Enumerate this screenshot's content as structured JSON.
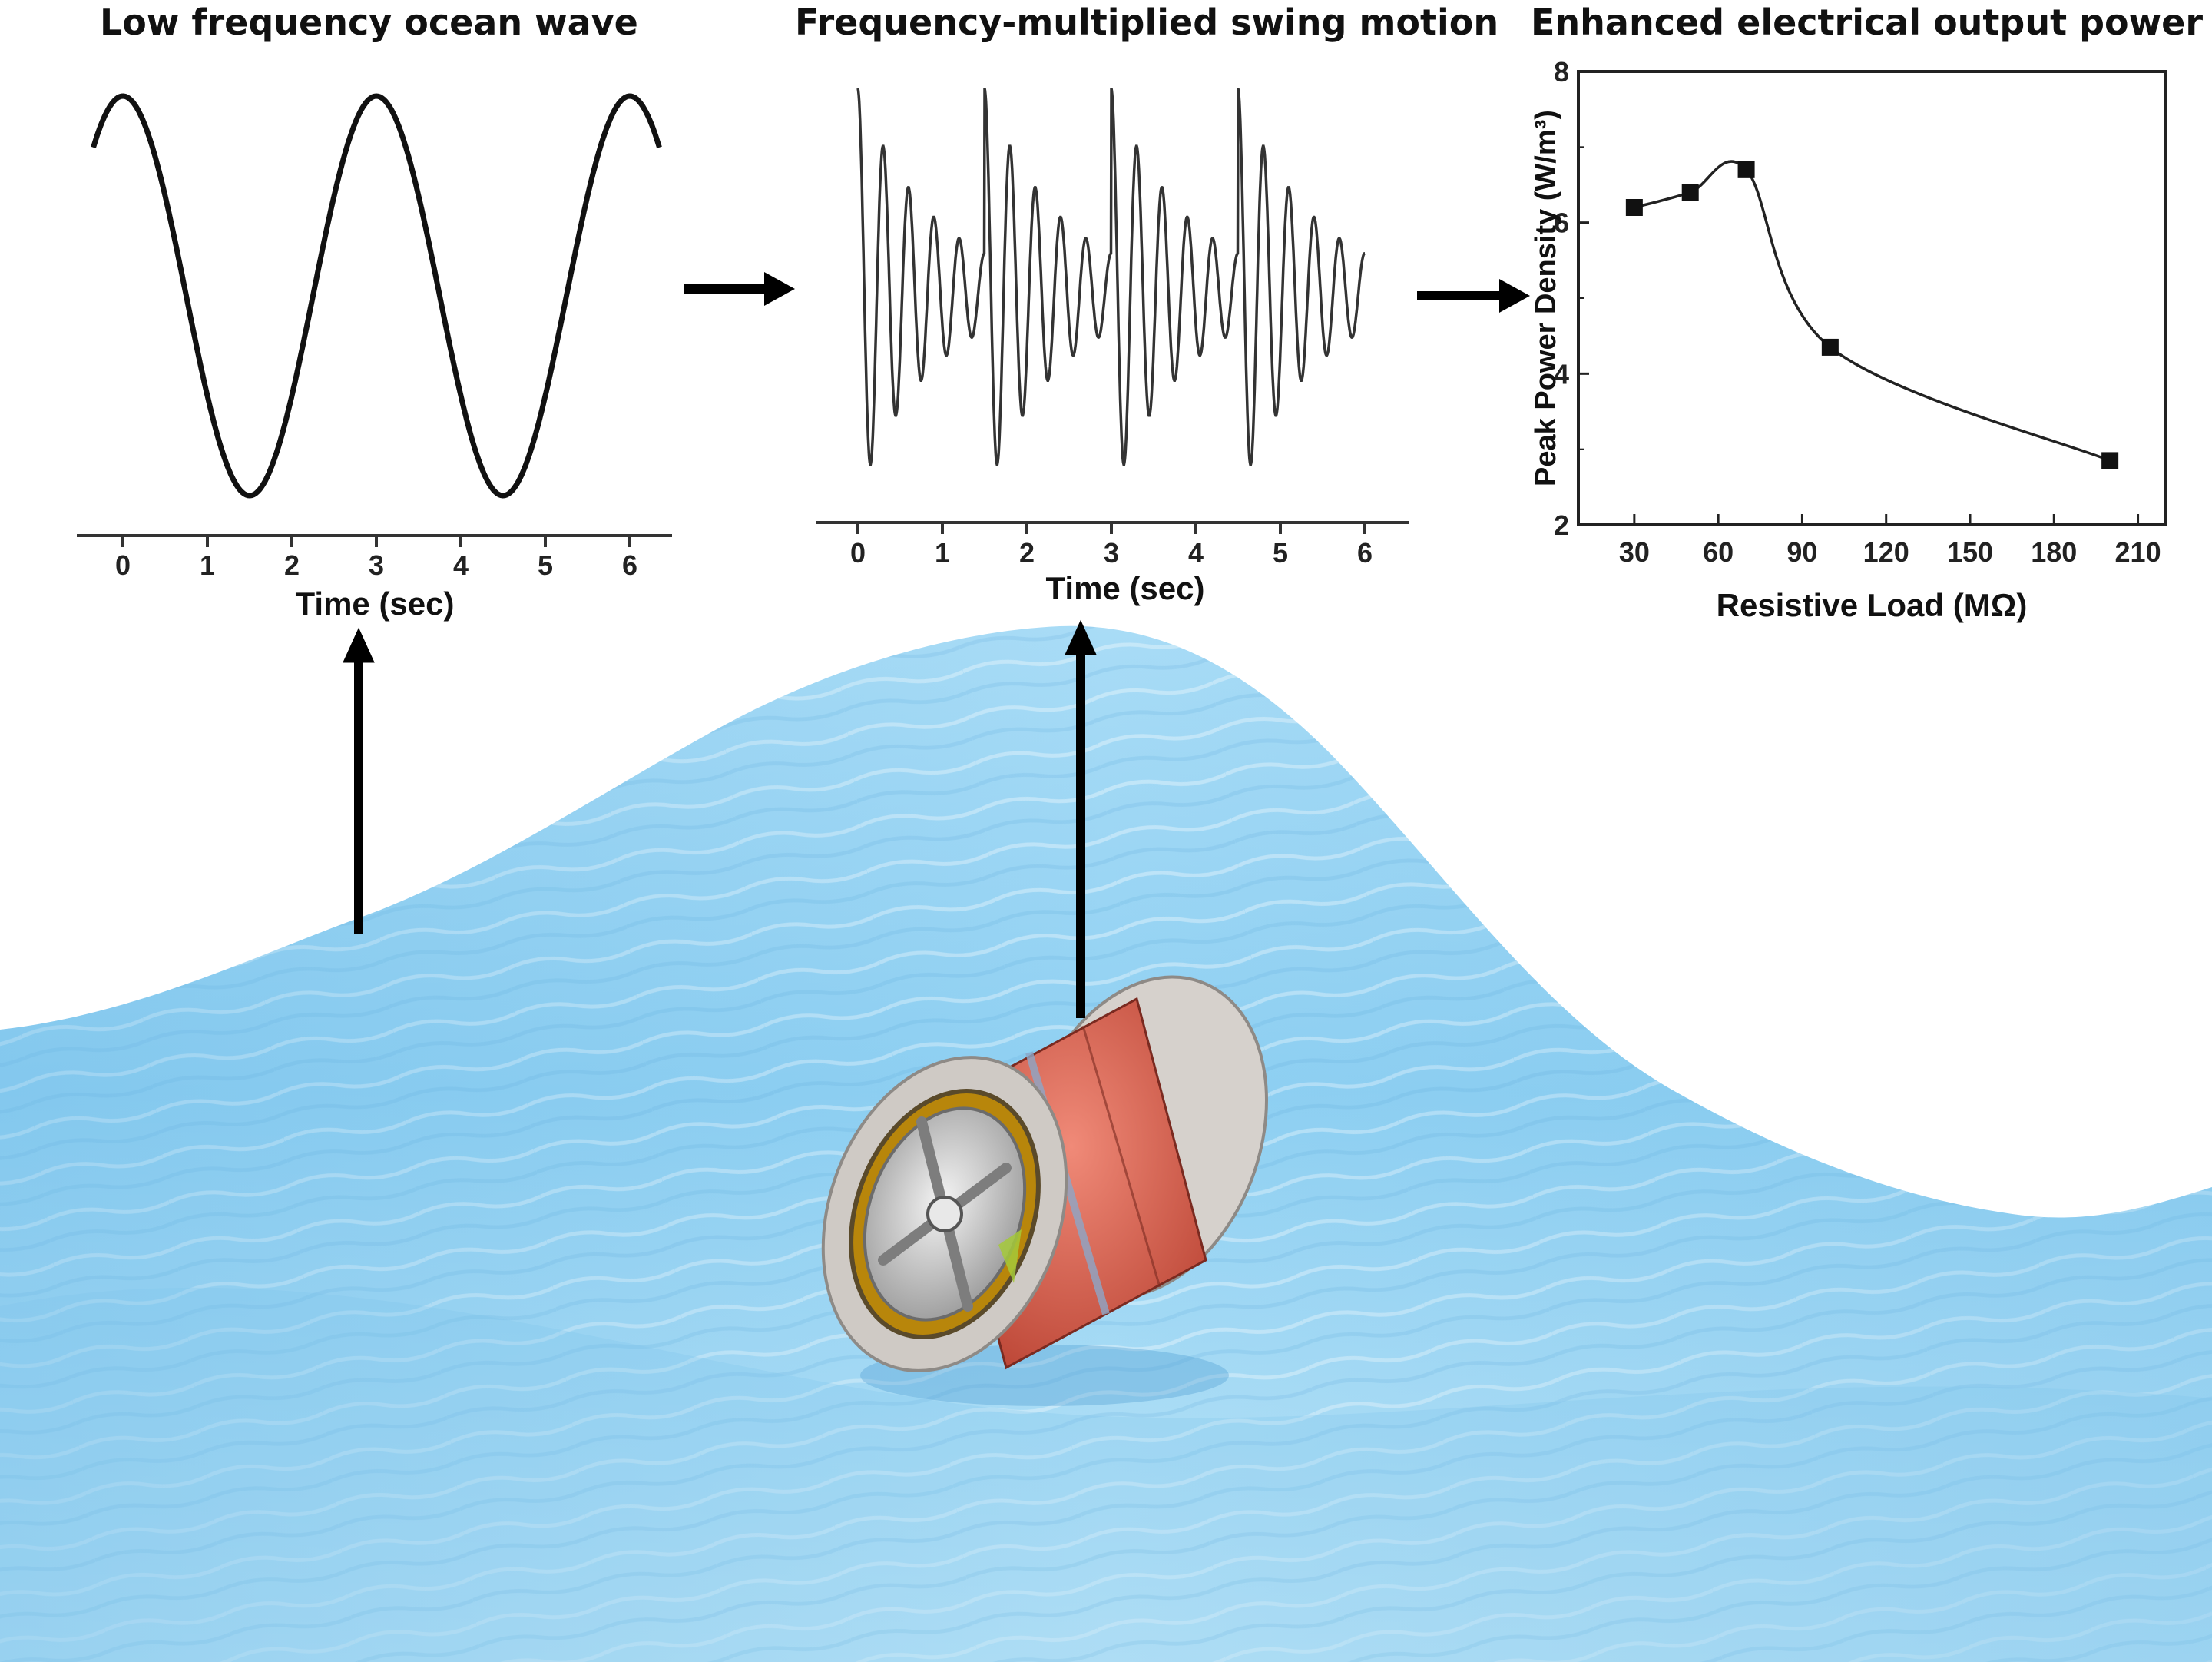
{
  "panels": {
    "wave": {
      "title": "Low frequency ocean wave",
      "x_label": "Time (sec)",
      "x_ticks": [
        "0",
        "1",
        "2",
        "3",
        "4",
        "5",
        "6"
      ]
    },
    "swing": {
      "title": "Frequency-multiplied swing motion",
      "x_label": "Time (sec)",
      "x_ticks": [
        "0",
        "1",
        "2",
        "3",
        "4",
        "5",
        "6"
      ]
    },
    "power": {
      "title": "Enhanced electrical output power"
    }
  },
  "chart_data": {
    "type": "line",
    "xlabel": "Resistive Load (MΩ)",
    "ylabel": "Peak Power Density (W/m³)",
    "xlim": [
      10,
      220
    ],
    "ylim": [
      2,
      8
    ],
    "x_ticks": [
      30,
      60,
      90,
      120,
      150,
      180,
      210
    ],
    "y_ticks": [
      2,
      4,
      6,
      8
    ],
    "series": [
      {
        "x": [
          30,
          50,
          70,
          100,
          200
        ],
        "y": [
          6.2,
          6.4,
          6.7,
          4.35,
          2.85
        ]
      }
    ]
  },
  "colors": {
    "ink": "#111111",
    "ocean_light": "#bfe4f8",
    "ocean_mid": "#8ccbef",
    "ocean_deep": "#5aaee0",
    "coil": "#d9584a",
    "flange": "#c9c4c0"
  },
  "icons": {
    "device": "rotational-generator-device"
  }
}
